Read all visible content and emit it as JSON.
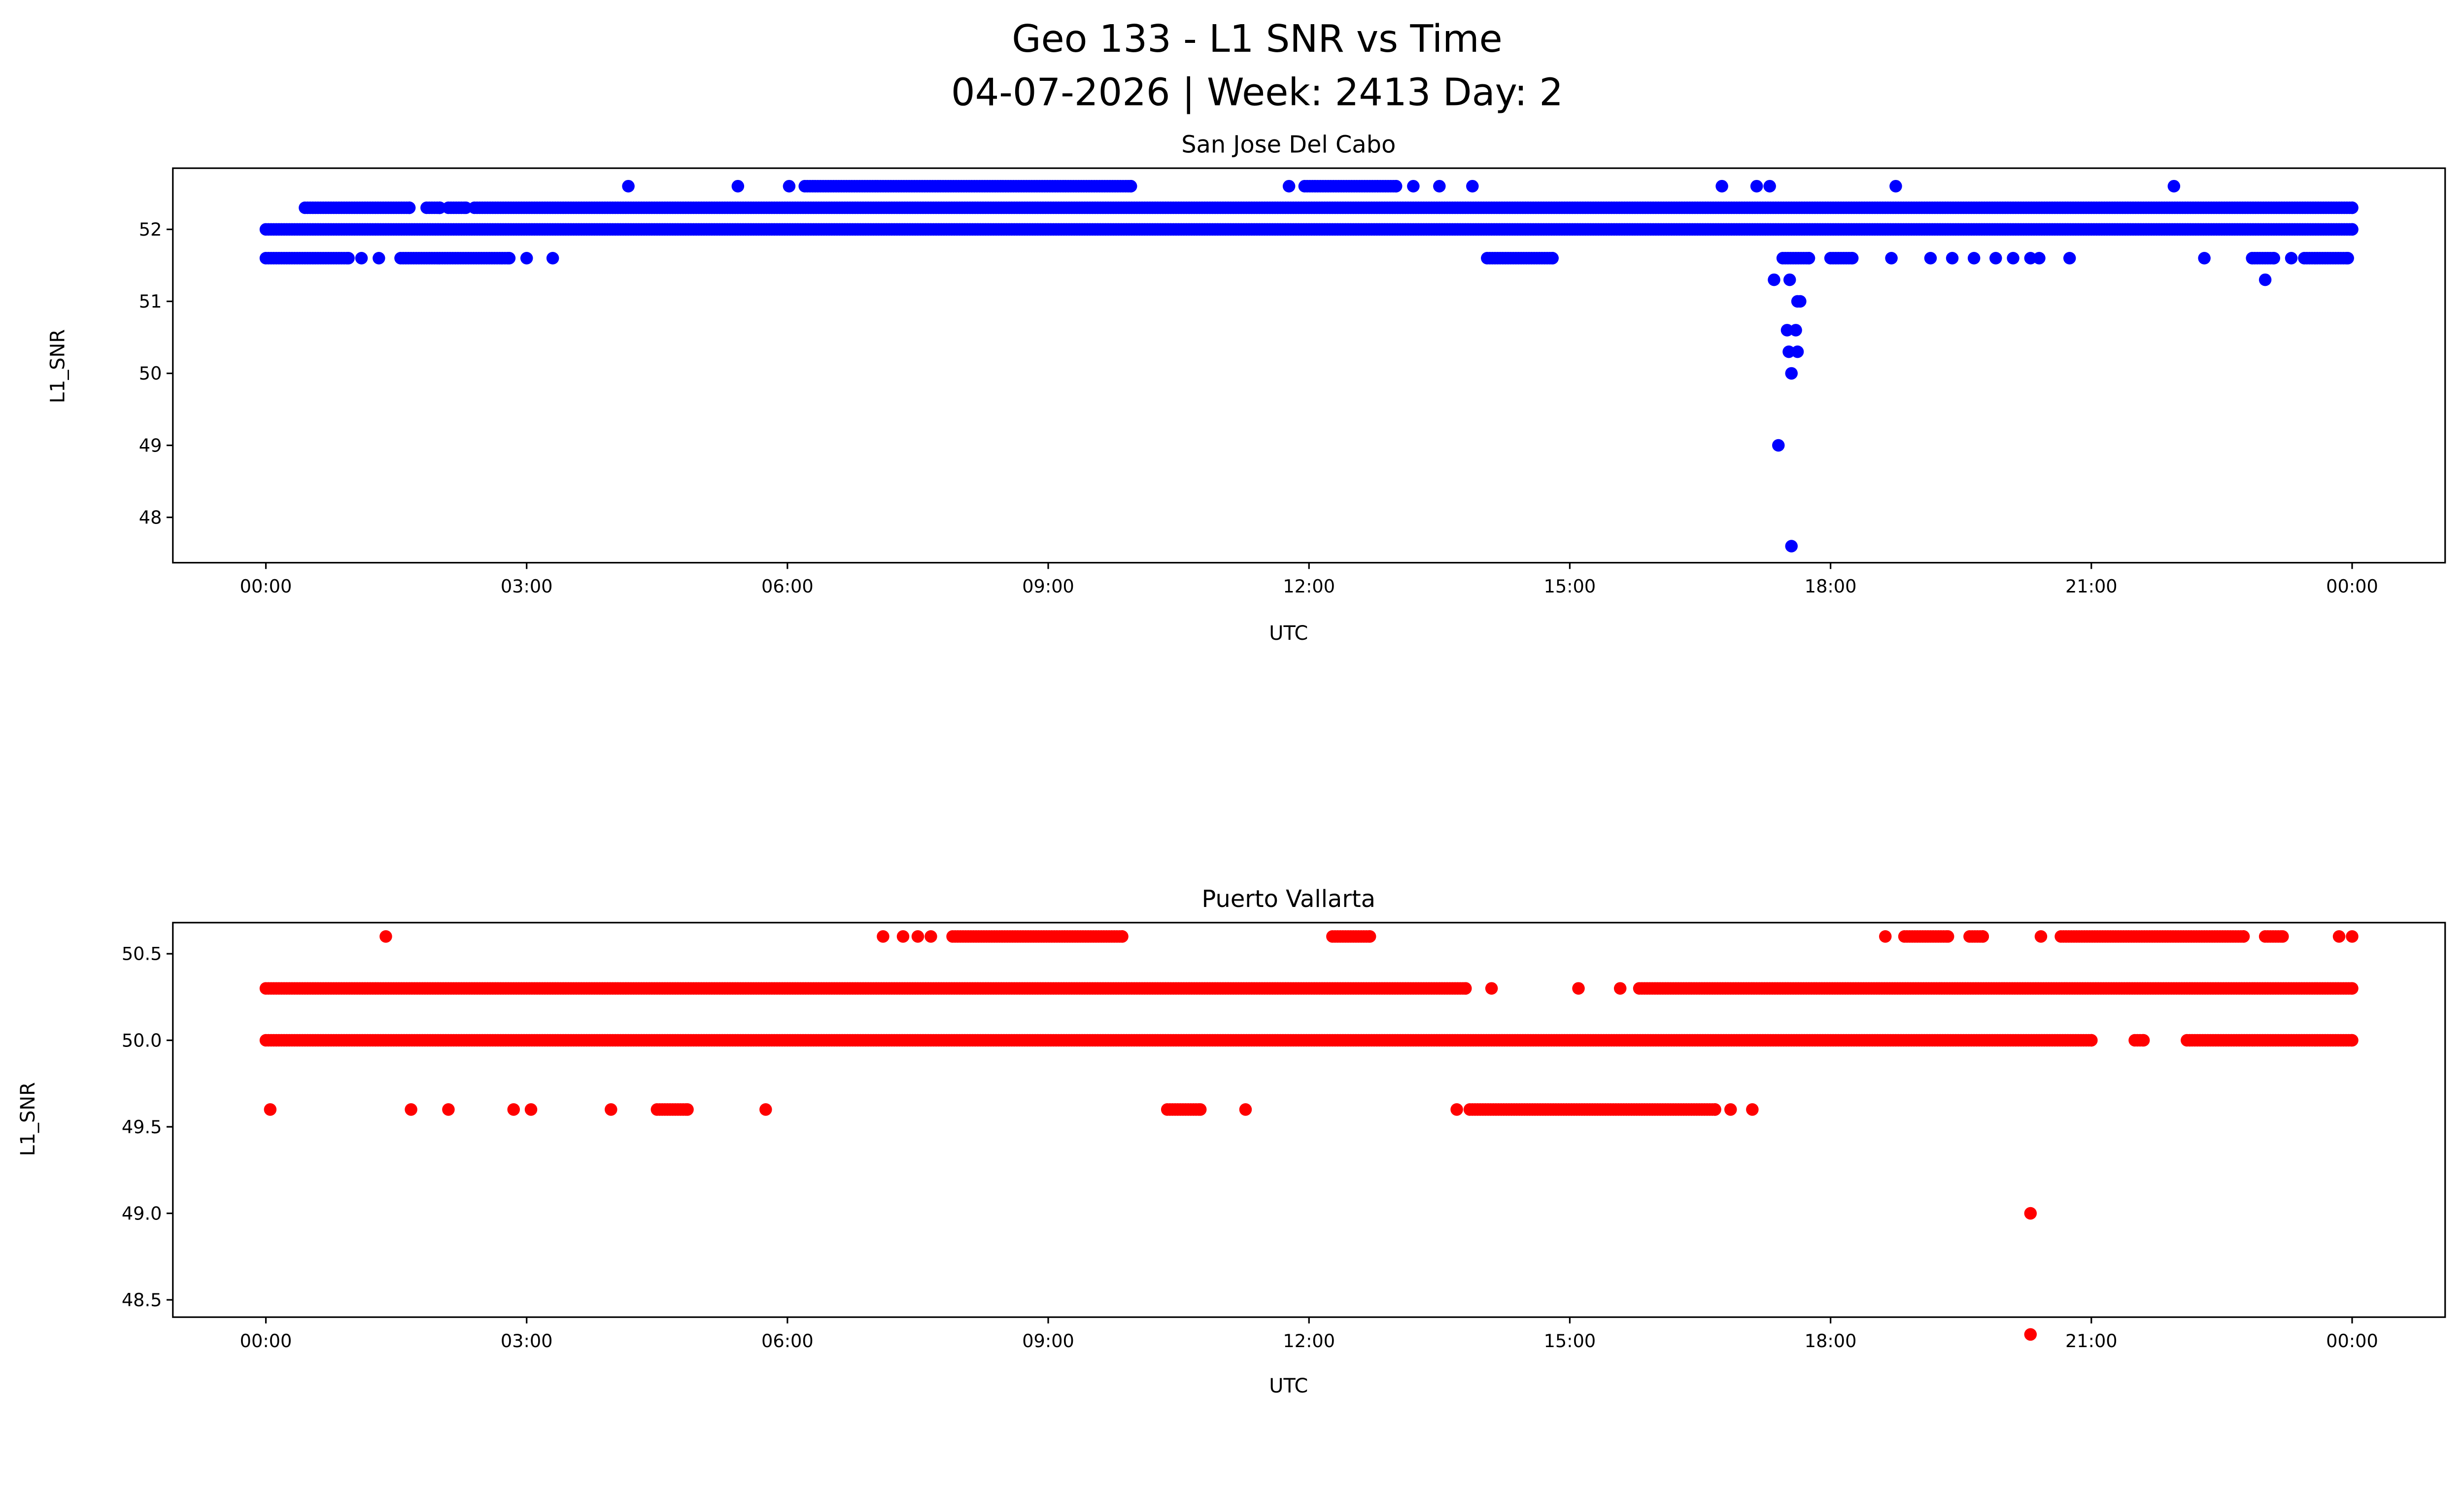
{
  "chart_data": [
    {
      "type": "scatter",
      "suptitle": [
        "Geo 133 - L1 SNR vs Time",
        "04-07-2026 | Week: 2413 Day: 2"
      ],
      "title": "San Jose Del Cabo",
      "xlabel": "UTC",
      "ylabel": "L1_SNR",
      "color": "#0000ff",
      "xlim_hours": [
        -1.07,
        25.07
      ],
      "ylim": [
        47.37,
        52.85
      ],
      "x_ticks": [
        0,
        3,
        6,
        9,
        12,
        15,
        18,
        21,
        24
      ],
      "x_tick_labels": [
        "00:00",
        "03:00",
        "06:00",
        "09:00",
        "12:00",
        "15:00",
        "18:00",
        "21:00",
        "00:00"
      ],
      "y_ticks": [
        48,
        49,
        50,
        51,
        52
      ],
      "y_tick_labels": [
        "48",
        "49",
        "50",
        "51",
        "52"
      ],
      "runs_hours_value": [
        [
          0,
          24,
          52.0
        ],
        [
          0.45,
          1.65,
          52.3
        ],
        [
          1.85,
          2.0,
          52.3
        ],
        [
          2.1,
          2.3,
          52.3
        ],
        [
          2.4,
          24,
          52.3
        ],
        [
          0,
          0.95,
          51.6
        ],
        [
          1.55,
          2.8,
          51.6
        ],
        [
          14.05,
          14.8,
          51.6
        ],
        [
          17.45,
          17.75,
          51.6
        ],
        [
          18.0,
          18.25,
          51.6
        ],
        [
          22.85,
          23.1,
          51.6
        ],
        [
          23.45,
          23.95,
          51.6
        ],
        [
          6.2,
          9.95,
          52.6
        ],
        [
          11.95,
          13.0,
          52.6
        ]
      ],
      "points_hours_value": [
        [
          1.1,
          51.6
        ],
        [
          1.3,
          51.6
        ],
        [
          3.0,
          51.6
        ],
        [
          3.3,
          51.6
        ],
        [
          18.7,
          51.6
        ],
        [
          19.15,
          51.6
        ],
        [
          19.4,
          51.6
        ],
        [
          19.65,
          51.6
        ],
        [
          19.9,
          51.6
        ],
        [
          20.1,
          51.6
        ],
        [
          20.3,
          51.6
        ],
        [
          20.4,
          51.6
        ],
        [
          20.75,
          51.6
        ],
        [
          22.3,
          51.6
        ],
        [
          23.3,
          51.6
        ],
        [
          4.17,
          52.6
        ],
        [
          5.43,
          52.6
        ],
        [
          6.02,
          52.6
        ],
        [
          11.77,
          52.6
        ],
        [
          13.2,
          52.6
        ],
        [
          13.5,
          52.6
        ],
        [
          13.88,
          52.6
        ],
        [
          16.75,
          52.6
        ],
        [
          17.15,
          52.6
        ],
        [
          17.3,
          52.6
        ],
        [
          18.75,
          52.6
        ],
        [
          21.95,
          52.6
        ],
        [
          17.35,
          51.3
        ],
        [
          17.53,
          51.3
        ],
        [
          23.0,
          51.3
        ],
        [
          17.65,
          51.0
        ],
        [
          17.62,
          51.0
        ],
        [
          17.5,
          50.6
        ],
        [
          17.6,
          50.6
        ],
        [
          17.52,
          50.3
        ],
        [
          17.62,
          50.3
        ],
        [
          17.55,
          50.0
        ],
        [
          17.4,
          49.0
        ],
        [
          17.55,
          47.6
        ]
      ]
    },
    {
      "type": "scatter",
      "title": "Puerto Vallarta",
      "xlabel": "UTC",
      "ylabel": "L1_SNR",
      "color": "#ff0000",
      "xlim_hours": [
        -1.07,
        25.07
      ],
      "ylim": [
        48.4,
        50.68
      ],
      "x_ticks": [
        0,
        3,
        6,
        9,
        12,
        15,
        18,
        21,
        24
      ],
      "x_tick_labels": [
        "00:00",
        "03:00",
        "06:00",
        "09:00",
        "12:00",
        "15:00",
        "18:00",
        "21:00",
        "00:00"
      ],
      "y_ticks": [
        48.5,
        49.0,
        49.5,
        50.0,
        50.5
      ],
      "y_tick_labels": [
        "48.5",
        "49.0",
        "49.5",
        "50.0",
        "50.5"
      ],
      "runs_hours_value": [
        [
          0,
          13.8,
          50.3
        ],
        [
          15.8,
          24,
          50.3
        ],
        [
          0,
          21.0,
          50.0
        ],
        [
          21.5,
          21.6,
          50.0
        ],
        [
          22.1,
          24,
          50.0
        ],
        [
          4.5,
          4.85,
          49.6
        ],
        [
          10.37,
          10.75,
          49.6
        ],
        [
          13.85,
          16.67,
          49.6
        ],
        [
          7.9,
          9.85,
          50.6
        ],
        [
          12.27,
          12.7,
          50.6
        ],
        [
          18.85,
          19.35,
          50.6
        ],
        [
          19.6,
          19.75,
          50.6
        ],
        [
          20.65,
          22.75,
          50.6
        ],
        [
          23.0,
          23.2,
          50.6
        ]
      ],
      "points_hours_value": [
        [
          14.1,
          50.3
        ],
        [
          15.1,
          50.3
        ],
        [
          15.58,
          50.3
        ],
        [
          0.05,
          49.6
        ],
        [
          1.67,
          49.6
        ],
        [
          2.1,
          49.6
        ],
        [
          2.85,
          49.6
        ],
        [
          3.05,
          49.6
        ],
        [
          3.97,
          49.6
        ],
        [
          5.75,
          49.6
        ],
        [
          11.27,
          49.6
        ],
        [
          13.7,
          49.6
        ],
        [
          16.85,
          49.6
        ],
        [
          17.1,
          49.6
        ],
        [
          1.38,
          50.6
        ],
        [
          7.1,
          50.6
        ],
        [
          7.33,
          50.6
        ],
        [
          7.5,
          50.6
        ],
        [
          7.65,
          50.6
        ],
        [
          18.63,
          50.6
        ],
        [
          20.42,
          50.6
        ],
        [
          23.85,
          50.6
        ],
        [
          24.0,
          50.6
        ],
        [
          20.3,
          49.0
        ],
        [
          20.3,
          48.3
        ]
      ]
    }
  ]
}
